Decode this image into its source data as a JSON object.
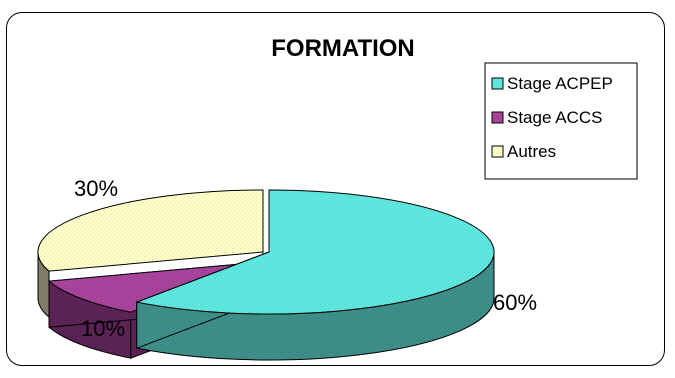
{
  "chart_data": {
    "type": "pie",
    "title": "FORMATION",
    "categories": [
      "Stage ACPEP",
      "Stage ACCS",
      "Autres"
    ],
    "values": [
      60,
      10,
      30
    ],
    "data_labels": [
      "60%",
      "10%",
      "30%"
    ],
    "colors": {
      "Stage ACPEP": "#5ee8e0",
      "Stage ACCS": "#a8449c",
      "Autres": "#ffffc8"
    },
    "side_colors": {
      "Stage ACPEP": "#3e8f8a",
      "Stage ACCS": "#5b2356",
      "Autres": "#7e7e6a"
    },
    "legend_placement": "top-right",
    "style": "3d-exploded"
  }
}
